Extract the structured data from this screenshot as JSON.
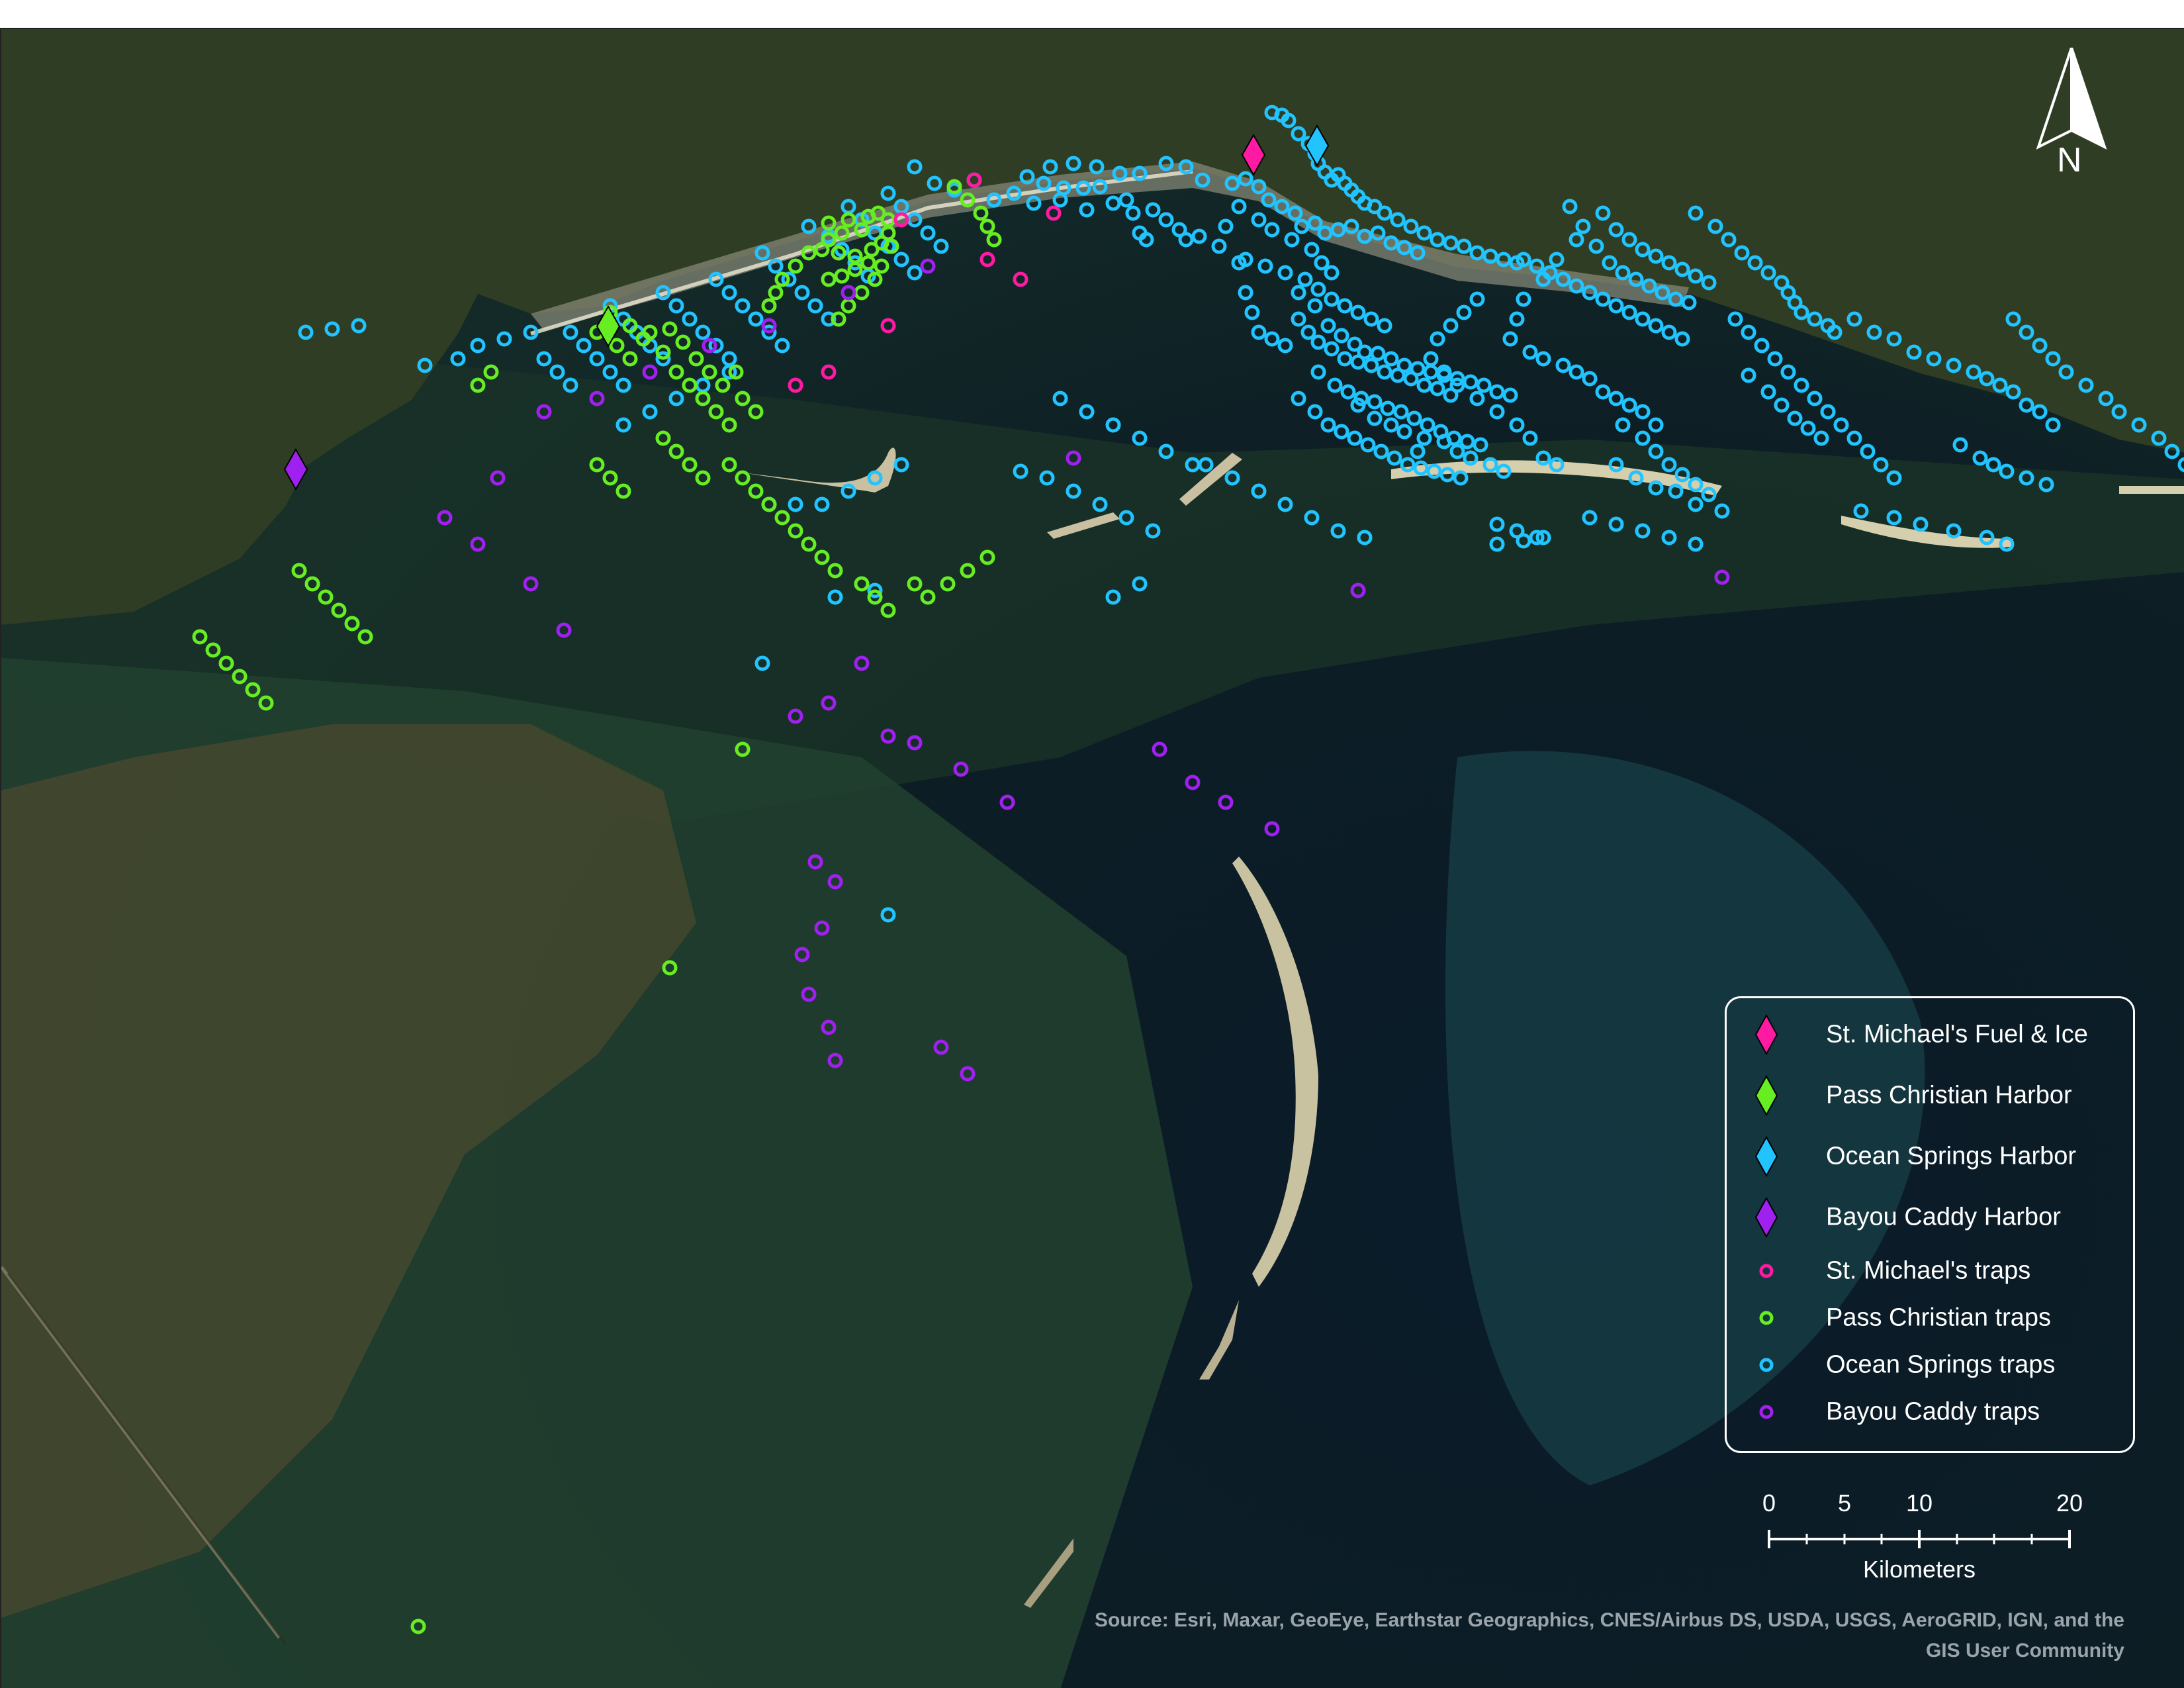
{
  "colors": {
    "st_michaels": "#ff1aa3",
    "pass_christian": "#66ee22",
    "ocean_springs": "#22c4ff",
    "bayou_caddy": "#a020f0",
    "water_deep": "#0b1a22",
    "water_shallow": "#1d3a2c",
    "land": "#3b4a2a"
  },
  "legend": {
    "items": [
      {
        "label": "St. Michael's Fuel & Ice",
        "symbol": "diamond",
        "color": "#ff1aa3"
      },
      {
        "label": "Pass Christian Harbor",
        "symbol": "diamond",
        "color": "#66ee22"
      },
      {
        "label": "Ocean Springs Harbor",
        "symbol": "diamond",
        "color": "#22c4ff"
      },
      {
        "label": "Bayou Caddy Harbor",
        "symbol": "diamond",
        "color": "#a020f0"
      },
      {
        "label": "St. Michael's traps",
        "symbol": "ring",
        "color": "#ff1aa3"
      },
      {
        "label": "Pass Christian traps",
        "symbol": "ring",
        "color": "#66ee22"
      },
      {
        "label": "Ocean Springs traps",
        "symbol": "ring",
        "color": "#22c4ff"
      },
      {
        "label": "Bayou Caddy traps",
        "symbol": "ring",
        "color": "#a020f0"
      }
    ]
  },
  "north_arrow": {
    "letter": "N"
  },
  "scale_bar": {
    "ticks": [
      "0",
      "5",
      "10",
      "20"
    ],
    "unit": "Kilometers"
  },
  "source_credit": {
    "line1": "Source: Esri, Maxar, GeoEye, Earthstar Geographics, CNES/Airbus DS, USDA, USGS, AeroGRID, IGN, and the",
    "line2": "GIS User Community"
  }
}
